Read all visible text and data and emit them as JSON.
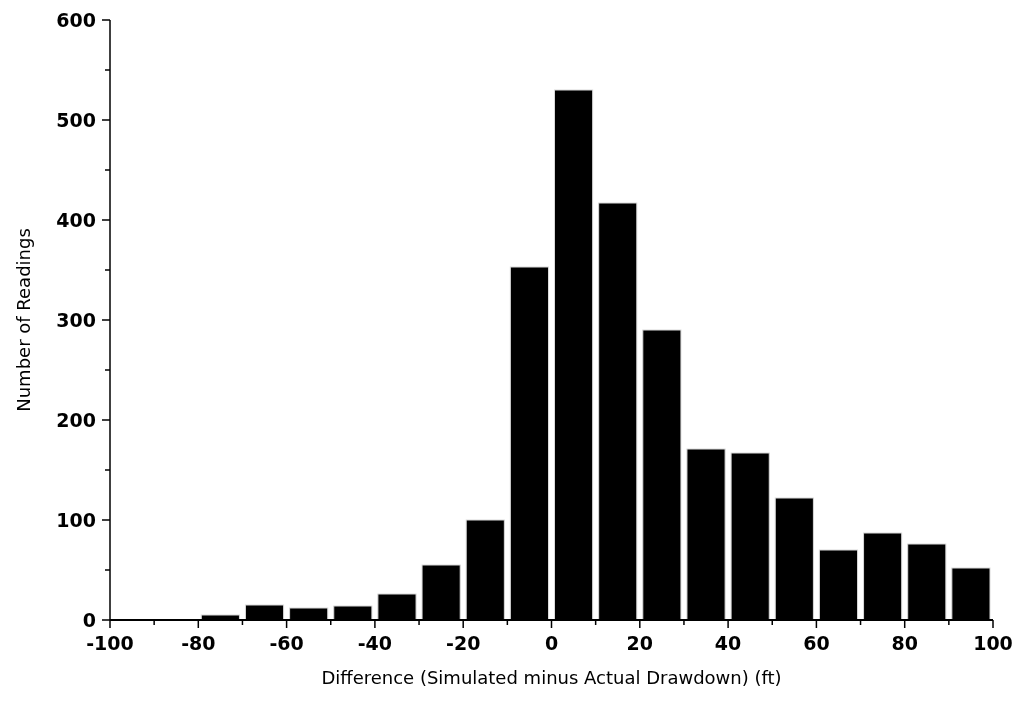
{
  "chart_data": {
    "type": "histogram",
    "xlabel": "Difference (Simulated minus Actual Drawdown) (ft)",
    "ylabel": "Number of Readings",
    "bins": [
      -100,
      -90,
      -80,
      -70,
      -60,
      -50,
      -40,
      -30,
      -20,
      -10,
      0,
      10,
      20,
      30,
      40,
      50,
      60,
      70,
      80,
      90,
      100
    ],
    "values": [
      0,
      0,
      5,
      15,
      12,
      14,
      26,
      55,
      100,
      353,
      530,
      417,
      290,
      171,
      167,
      122,
      70,
      87,
      76,
      52
    ],
    "color": "#000000",
    "xlim": [
      -100,
      100
    ],
    "ylim": [
      0,
      600
    ],
    "xticks": [
      -100,
      {
        "value": -90,
        "label": null
      },
      -80,
      {
        "value": -70,
        "label": null
      },
      -60,
      {
        "value": -50,
        "label": null
      },
      -40,
      {
        "value": -30,
        "label": null
      },
      -20,
      {
        "value": -10,
        "label": null
      },
      0,
      {
        "value": 10,
        "label": null
      },
      20,
      {
        "value": 30,
        "label": null
      },
      40,
      {
        "value": 50,
        "label": null
      },
      60,
      {
        "value": 70,
        "label": null
      },
      80,
      {
        "value": 90,
        "label": null
      },
      100
    ],
    "yticks": [
      0,
      {
        "value": 50,
        "label": null
      },
      100,
      {
        "value": 150,
        "label": null
      },
      200,
      {
        "value": 250,
        "label": null
      },
      300,
      {
        "value": 350,
        "label": null
      },
      400,
      {
        "value": 450,
        "label": null
      },
      500,
      {
        "value": 550,
        "label": null
      },
      600
    ],
    "grid": false
  }
}
